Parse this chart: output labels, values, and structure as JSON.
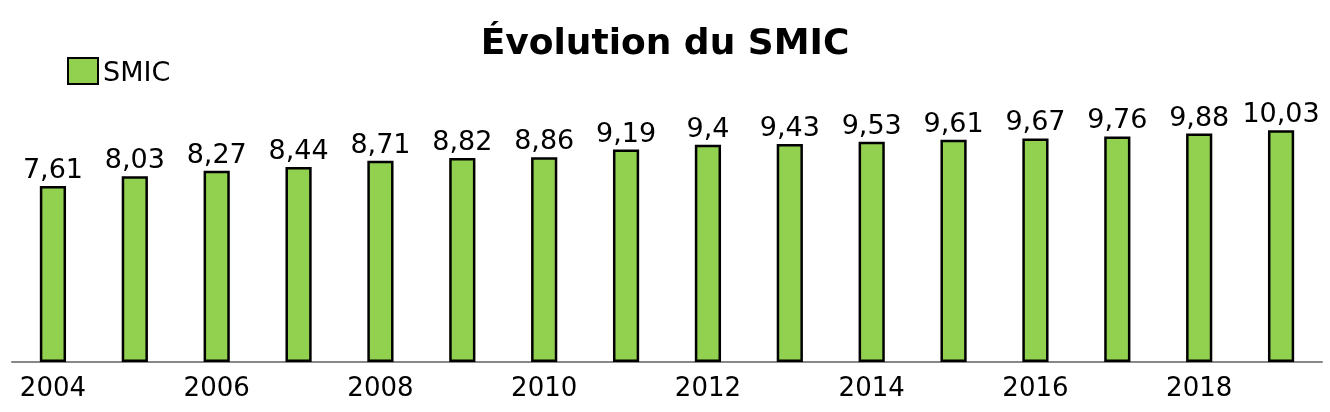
{
  "chart_data": {
    "type": "bar",
    "title": "Évolution du SMIC",
    "categories": [
      "2004",
      null,
      "2006",
      null,
      "2008",
      null,
      "2010",
      null,
      "2012",
      null,
      "2014",
      null,
      "2016",
      null,
      "2018",
      null
    ],
    "series": [
      {
        "name": "SMIC",
        "color": "#92d050",
        "values": [
          7.61,
          8.03,
          8.27,
          8.44,
          8.71,
          8.82,
          8.86,
          9.19,
          9.4,
          9.43,
          9.53,
          9.61,
          9.67,
          9.76,
          9.88,
          10.03
        ],
        "value_labels": [
          "7,61",
          "8,03",
          "8,27",
          "8,44",
          "8,71",
          "8,82",
          "8,86",
          "9,19",
          "9,4",
          "9,43",
          "9,53",
          "9,61",
          "9,67",
          "9,76",
          "9,88",
          "10,03"
        ]
      }
    ],
    "legend": "top left",
    "grid": false
  }
}
